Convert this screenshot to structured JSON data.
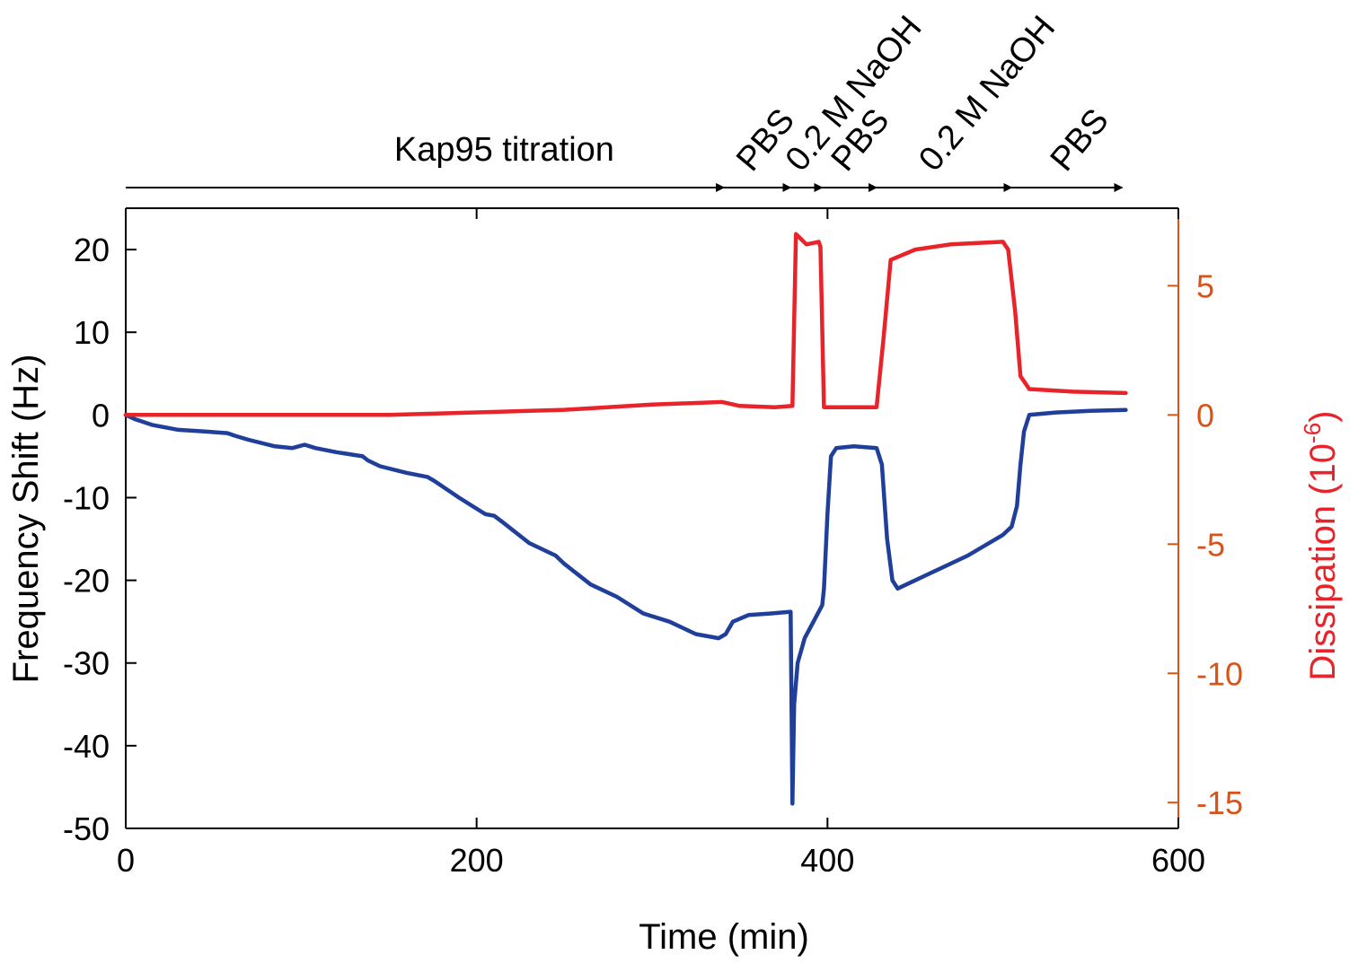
{
  "chart_data": {
    "type": "line",
    "xlabel": "Time (min)",
    "ylabel_left": "Frequency Shift (Hz)",
    "ylabel_right_main": "Dissipation (10",
    "ylabel_right_sup": "-6",
    "ylabel_right_close": ")",
    "xlim": [
      0,
      600
    ],
    "ylim_left": [
      -50,
      25
    ],
    "ylim_right": [
      -16,
      8
    ],
    "x_ticks": [
      {
        "v": 0,
        "label": "0"
      },
      {
        "v": 200,
        "label": "200"
      },
      {
        "v": 400,
        "label": "400"
      },
      {
        "v": 600,
        "label": "600"
      }
    ],
    "y_left_ticks": [
      {
        "v": 20,
        "label": "20"
      },
      {
        "v": 10,
        "label": "10"
      },
      {
        "v": 0,
        "label": "0"
      },
      {
        "v": -10,
        "label": "-10"
      },
      {
        "v": -20,
        "label": "-20"
      },
      {
        "v": -30,
        "label": "-30"
      },
      {
        "v": -40,
        "label": "-40"
      },
      {
        "v": -50,
        "label": "-50"
      }
    ],
    "y_right_ticks": [
      {
        "v": 5,
        "label": "5"
      },
      {
        "v": 0,
        "label": "0"
      },
      {
        "v": -5,
        "label": "-5"
      },
      {
        "v": -10,
        "label": "-10"
      },
      {
        "v": -15,
        "label": "-15"
      }
    ],
    "axis_colors": {
      "left": "#000000",
      "right": "#d95319"
    },
    "series": [
      {
        "axis": "left",
        "color": "#1f3f9a",
        "points": [
          [
            0,
            0
          ],
          [
            5,
            -0.5
          ],
          [
            15,
            -1.2
          ],
          [
            30,
            -1.8
          ],
          [
            45,
            -2
          ],
          [
            58,
            -2.2
          ],
          [
            62,
            -2.5
          ],
          [
            70,
            -3
          ],
          [
            85,
            -3.8
          ],
          [
            95,
            -4
          ],
          [
            102,
            -3.6
          ],
          [
            108,
            -4
          ],
          [
            120,
            -4.5
          ],
          [
            135,
            -5
          ],
          [
            138,
            -5.5
          ],
          [
            145,
            -6.2
          ],
          [
            160,
            -7
          ],
          [
            172,
            -7.5
          ],
          [
            176,
            -8
          ],
          [
            190,
            -10
          ],
          [
            205,
            -12
          ],
          [
            210,
            -12.2
          ],
          [
            215,
            -13
          ],
          [
            230,
            -15.5
          ],
          [
            245,
            -17
          ],
          [
            250,
            -18
          ],
          [
            265,
            -20.5
          ],
          [
            280,
            -22
          ],
          [
            295,
            -24
          ],
          [
            310,
            -25
          ],
          [
            325,
            -26.5
          ],
          [
            338,
            -27
          ],
          [
            342,
            -26.5
          ],
          [
            346,
            -25
          ],
          [
            355,
            -24.2
          ],
          [
            368,
            -24
          ],
          [
            379,
            -23.8
          ],
          [
            380,
            -47
          ],
          [
            381,
            -35
          ],
          [
            383,
            -30
          ],
          [
            387,
            -27
          ],
          [
            392,
            -25
          ],
          [
            397,
            -23
          ],
          [
            398,
            -21
          ],
          [
            400,
            -12
          ],
          [
            402,
            -5
          ],
          [
            405,
            -4
          ],
          [
            415,
            -3.8
          ],
          [
            428,
            -4
          ],
          [
            431,
            -6
          ],
          [
            434,
            -15
          ],
          [
            437,
            -20
          ],
          [
            440,
            -21
          ],
          [
            460,
            -19
          ],
          [
            480,
            -17
          ],
          [
            500,
            -14.5
          ],
          [
            505,
            -13.5
          ],
          [
            508,
            -11
          ],
          [
            510,
            -6
          ],
          [
            512,
            -2
          ],
          [
            515,
            0
          ],
          [
            530,
            0.3
          ],
          [
            550,
            0.5
          ],
          [
            570,
            0.6
          ]
        ]
      },
      {
        "axis": "right",
        "color": "#e8232a",
        "points": [
          [
            0,
            0
          ],
          [
            50,
            0
          ],
          [
            100,
            0
          ],
          [
            150,
            0
          ],
          [
            200,
            0.1
          ],
          [
            250,
            0.2
          ],
          [
            300,
            0.4
          ],
          [
            340,
            0.5
          ],
          [
            350,
            0.35
          ],
          [
            370,
            0.3
          ],
          [
            380,
            0.35
          ],
          [
            382,
            7
          ],
          [
            385,
            6.8
          ],
          [
            388,
            6.6
          ],
          [
            395,
            6.7
          ],
          [
            396,
            6.5
          ],
          [
            398,
            0.3
          ],
          [
            400,
            0.3
          ],
          [
            410,
            0.3
          ],
          [
            428,
            0.3
          ],
          [
            432,
            3
          ],
          [
            436,
            6
          ],
          [
            450,
            6.4
          ],
          [
            470,
            6.6
          ],
          [
            500,
            6.7
          ],
          [
            503,
            6.4
          ],
          [
            507,
            4
          ],
          [
            510,
            1.5
          ],
          [
            515,
            1
          ],
          [
            540,
            0.9
          ],
          [
            570,
            0.85
          ]
        ]
      }
    ],
    "phases": {
      "arrow_y_left": 27.5,
      "segments": [
        [
          0,
          341
        ],
        [
          341,
          379
        ],
        [
          379,
          397
        ],
        [
          397,
          428
        ],
        [
          428,
          505
        ],
        [
          505,
          568
        ]
      ],
      "labels": [
        {
          "text": "Kap95 titration",
          "x": 153,
          "rotated": false
        },
        {
          "text": "PBS",
          "x": 357,
          "rotated": true
        },
        {
          "text": "0.2 M NaOH",
          "x": 385,
          "rotated": true
        },
        {
          "text": "PBS",
          "x": 411,
          "rotated": true
        },
        {
          "text": "0.2 M NaOH",
          "x": 461,
          "rotated": true
        },
        {
          "text": "PBS",
          "x": 536,
          "rotated": true
        }
      ]
    }
  }
}
